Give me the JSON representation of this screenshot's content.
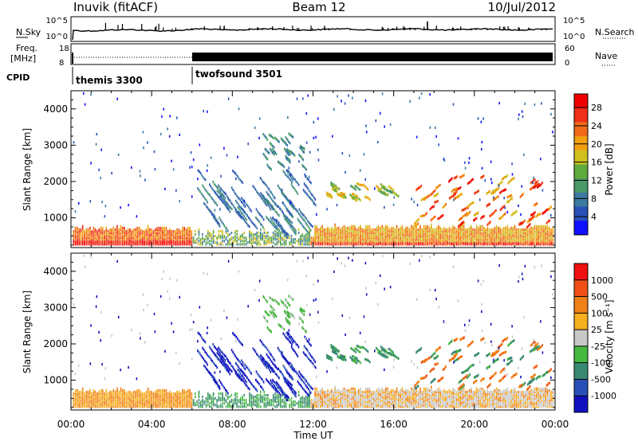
{
  "header": {
    "station": "Inuvik (fitACF)",
    "beam": "Beam 12",
    "date": "10/Jul/2012"
  },
  "status_panel": {
    "left_labels": [
      "N.Sky",
      "Freq.",
      "[MHz]",
      "CPID"
    ],
    "right_labels": [
      "N.Search",
      "Nave"
    ],
    "nsky_ticks": [
      "10^5",
      "10^0"
    ],
    "nsearch_ticks": [
      "10^5",
      "10^0"
    ],
    "freq_ticks": [
      "18",
      "8"
    ],
    "nave_ticks": [
      "60",
      "0"
    ],
    "cpid_segments": [
      {
        "name": "themis 3300",
        "start_hour": 0,
        "end_hour": 6
      },
      {
        "name": "twofsound 3501",
        "start_hour": 6,
        "end_hour": 24
      }
    ]
  },
  "chart_data": [
    {
      "type": "heatmap",
      "ylabel": "Slant Range [km]",
      "xlabel": "",
      "x_range_hours": [
        0,
        24
      ],
      "ylim": [
        180,
        4500
      ],
      "yticks": [
        1000,
        2000,
        3000,
        4000
      ],
      "xtick_labels": [],
      "colorbar": {
        "label": "Power [dB]",
        "ticks": [
          4,
          8,
          12,
          16,
          20,
          24,
          28
        ],
        "range": [
          0,
          31
        ],
        "colors": [
          "#1010ff",
          "#2850b8",
          "#3c7aa0",
          "#4a9a6a",
          "#5faa3c",
          "#cfc020",
          "#f0a010",
          "#f06a18",
          "#f03018",
          "#f00000"
        ]
      }
    },
    {
      "type": "heatmap",
      "ylabel": "Slant Range [km]",
      "xlabel": "Time UT",
      "x_range_hours": [
        0,
        24
      ],
      "ylim": [
        180,
        4500
      ],
      "yticks": [
        1000,
        2000,
        3000,
        4000
      ],
      "xtick_labels": [
        "00:00",
        "04:00",
        "08:00",
        "12:00",
        "16:00",
        "20:00",
        "00:00"
      ],
      "colorbar": {
        "label": "Velocity [m s⁻¹]",
        "ticks": [
          1000,
          500,
          100,
          25,
          -25,
          -100,
          -500,
          -1000
        ],
        "colors": [
          "#1010c0",
          "#2850b8",
          "#3a8a72",
          "#46b840",
          "#c8c8c8",
          "#f5b020",
          "#f08018",
          "#f05018",
          "#f01010"
        ]
      }
    }
  ]
}
